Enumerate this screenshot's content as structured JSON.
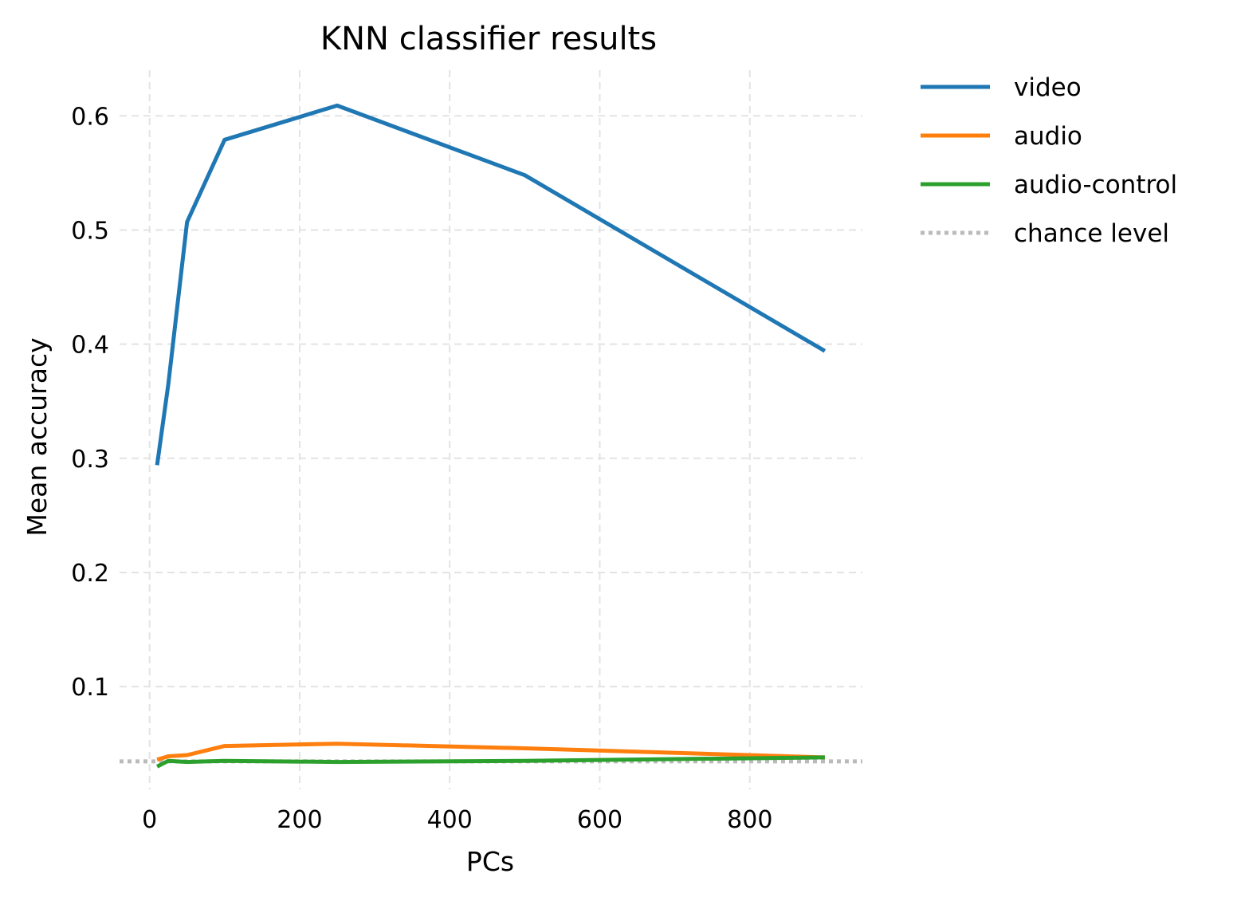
{
  "chart_data": {
    "type": "line",
    "title": "KNN classifier results",
    "xlabel": "PCs",
    "ylabel": "Mean accuracy",
    "xlim": [
      -40,
      950
    ],
    "ylim": [
      0.01,
      0.64
    ],
    "xticks": [
      0,
      200,
      400,
      600,
      800
    ],
    "yticks": [
      0.1,
      0.2,
      0.3,
      0.4,
      0.5,
      0.6
    ],
    "grid": true,
    "legend_position": "outside-top-right",
    "series": [
      {
        "name": "video",
        "color": "#1f77b4",
        "style": "solid",
        "x": [
          10,
          25,
          50,
          100,
          250,
          500,
          900
        ],
        "y": [
          0.294,
          0.365,
          0.507,
          0.579,
          0.609,
          0.548,
          0.394
        ]
      },
      {
        "name": "audio",
        "color": "#ff7f0e",
        "style": "solid",
        "x": [
          10,
          25,
          50,
          100,
          250,
          500,
          900
        ],
        "y": [
          0.036,
          0.039,
          0.04,
          0.048,
          0.05,
          0.046,
          0.038
        ]
      },
      {
        "name": "audio-control",
        "color": "#2ca02c",
        "style": "solid",
        "x": [
          10,
          25,
          50,
          100,
          250,
          500,
          900
        ],
        "y": [
          0.03,
          0.035,
          0.034,
          0.035,
          0.034,
          0.035,
          0.038
        ]
      },
      {
        "name": "chance level",
        "color": "#bbbbbb",
        "style": "dotted",
        "x": [
          -40,
          950
        ],
        "y": [
          0.0345,
          0.0345
        ]
      }
    ]
  }
}
